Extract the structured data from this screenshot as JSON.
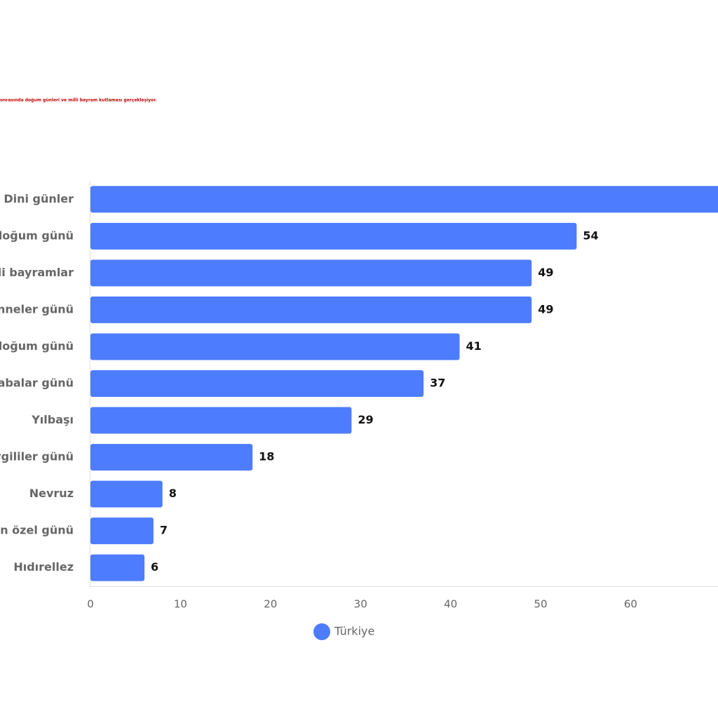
{
  "chart_data": {
    "type": "bar",
    "orientation": "horizontal",
    "subtitle": "onrasında doğum günleri ve milli bayram kutlaması gerçekleşiyor.",
    "categories": [
      "Dini günler",
      "doğum günü",
      "illi bayramlar",
      "Anneler günü",
      "doğum günü",
      "Babalar günü",
      "Yılbaşı",
      "evgililer günü",
      "Nevruz",
      "nun özel günü",
      "Hıdırellez"
    ],
    "series": [
      {
        "name": "Türkiye",
        "color": "#4d7cfe",
        "values": [
          71,
          54,
          49,
          49,
          41,
          37,
          29,
          18,
          8,
          7,
          6
        ]
      }
    ],
    "xlim": [
      0,
      69.7
    ],
    "xticks": [
      0,
      10,
      20,
      30,
      40,
      50,
      60
    ]
  }
}
